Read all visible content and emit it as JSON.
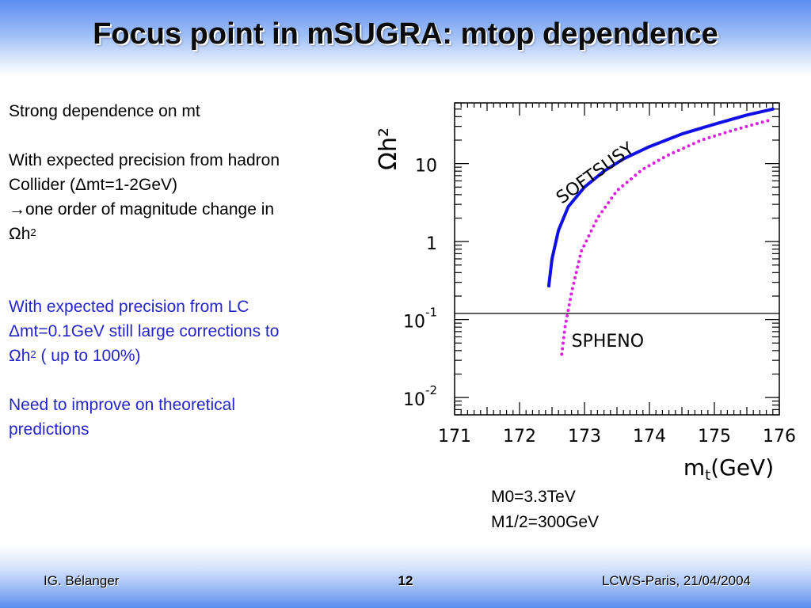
{
  "slide": {
    "title": "Focus point in mSUGRA: mtop dependence",
    "left_text": {
      "line1": "Strong dependence on mt",
      "line2": "With expected precision from hadron",
      "line3": "Collider (Δmt=1-2GeV)",
      "line4": "→one order of magnitude change in",
      "omega_h": "Ωh",
      "sup2": "2",
      "blue1_line1": "With expected precision from LC",
      "blue1_line2": "Δmt=0.1GeV still large corrections to",
      "blue1_line3_tail": " ( up to 100%)",
      "blue2_line1": "Need to improve on theoretical",
      "blue2_line2": "predictions"
    },
    "params": {
      "m0": "M0=3.3TeV",
      "m12": "M1/2=300GeV"
    },
    "footer": {
      "author": "IG. Bélanger",
      "page": "12",
      "event": "LCWS-Paris, 21/04/2004"
    }
  },
  "colors": {
    "softsusy": "#1010e6",
    "spheno": "#e020e0",
    "title": "#0b0b0b",
    "blue_text": "#2525c8"
  },
  "chart_data": {
    "type": "line",
    "xlabel": "m_t(GeV)",
    "ylabel": "Ωh²",
    "xlim": [
      171,
      176
    ],
    "ylim": [
      0.006,
      60
    ],
    "yscale": "log",
    "x_ticks": [
      "171",
      "172",
      "173",
      "174",
      "175",
      "176"
    ],
    "y_ticks": [
      {
        "base": "10",
        "exp": "-2",
        "value": 0.01
      },
      {
        "base": "10",
        "exp": "-1",
        "value": 0.1
      },
      {
        "base": "1",
        "exp": "",
        "value": 1
      },
      {
        "base": "10",
        "exp": "",
        "value": 10
      }
    ],
    "reference_line": {
      "y": 0.12
    },
    "series": [
      {
        "name": "SOFTSUSY",
        "style": "solid",
        "x": [
          172.45,
          172.5,
          172.6,
          172.75,
          173.0,
          173.3,
          173.6,
          174.0,
          174.5,
          175.0,
          175.5,
          175.9
        ],
        "y": [
          0.27,
          0.6,
          1.4,
          2.8,
          5.0,
          8.0,
          11.5,
          16.5,
          24.0,
          32.0,
          42.0,
          50.0
        ]
      },
      {
        "name": "SPHENO",
        "style": "dotted",
        "x": [
          172.65,
          172.7,
          172.8,
          172.95,
          173.2,
          173.5,
          173.9,
          174.3,
          174.8,
          175.3,
          175.9
        ],
        "y": [
          0.036,
          0.08,
          0.22,
          0.75,
          2.0,
          4.5,
          8.5,
          13.0,
          20.0,
          27.0,
          37.0
        ]
      }
    ]
  }
}
